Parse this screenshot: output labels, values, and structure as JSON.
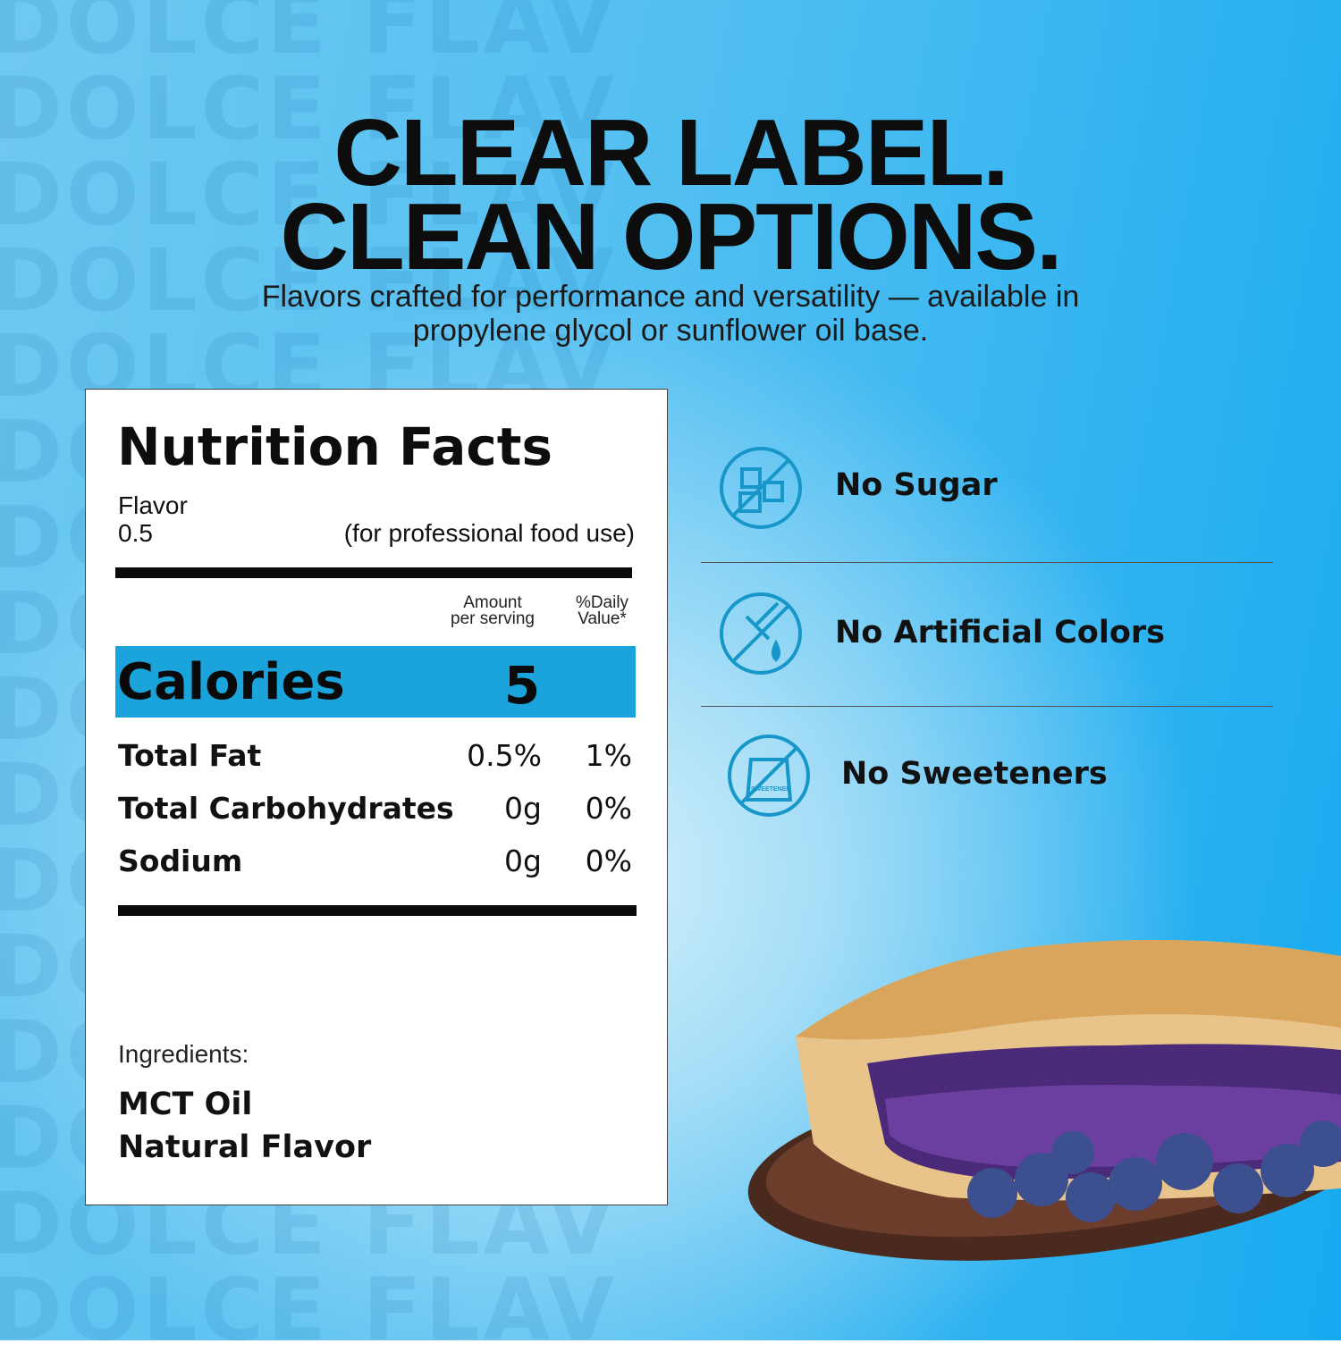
{
  "watermark": "DOLCE FLAV",
  "header": {
    "title_lines": [
      "CLEAR LABEL.",
      "CLEAN OPTIONS."
    ],
    "subtitle_lines": [
      "Flavors crafted for performance and versatility — available in",
      "propylene glycol or sunflower oil base."
    ]
  },
  "nutrition": {
    "title": "Nutrition Facts",
    "product": "Flavor",
    "serving": "0.5",
    "note": "(for professional food use)",
    "col_amount": [
      "Amount",
      "per serving"
    ],
    "col_daily": [
      "%Daily",
      "Value*"
    ],
    "calories_label": "Calories",
    "calories_value": "5",
    "rows": [
      [
        "Total Fat",
        "0.5%",
        "1%"
      ],
      [
        "Total Carbohydrates",
        "0g",
        "0%"
      ],
      [
        "Sodium",
        "0g",
        "0%"
      ]
    ],
    "ingredients_label": "Ingredients:",
    "ingredients": [
      "MCT Oil",
      "Natural Flavor"
    ]
  },
  "features": [
    {
      "label": "No Sugar"
    },
    {
      "label": "No Artificial Colors"
    },
    {
      "label": "No Sweeteners",
      "icon_text": "SWEETENER"
    }
  ]
}
